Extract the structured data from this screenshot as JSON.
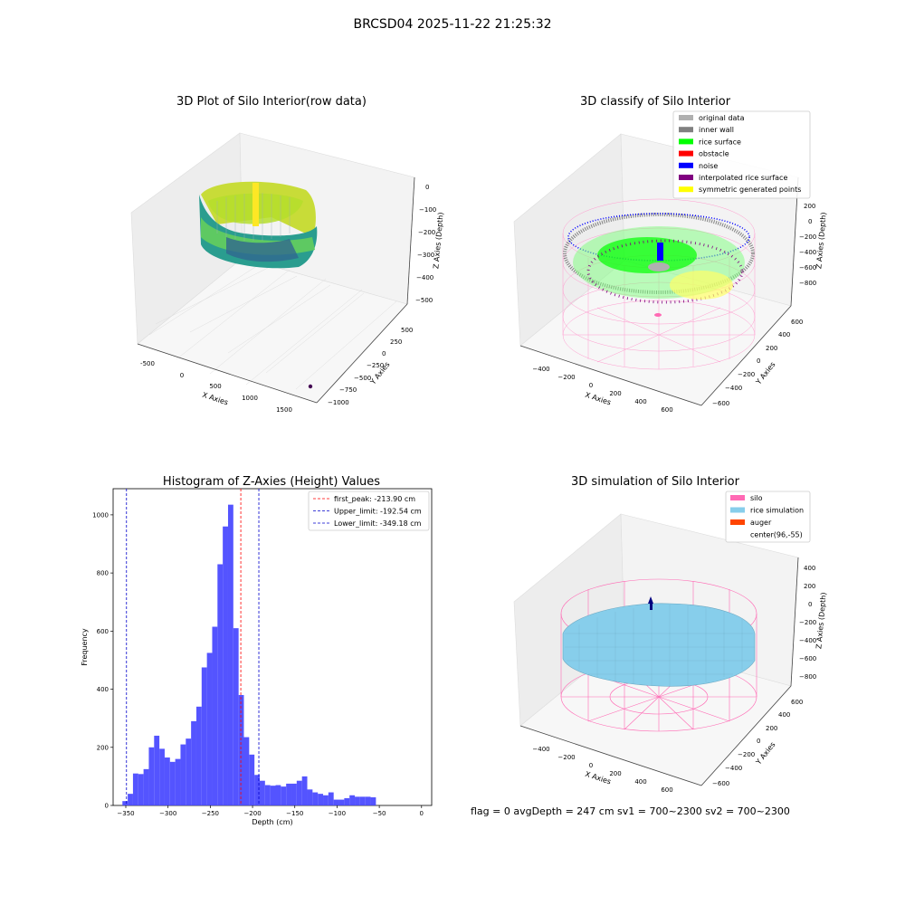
{
  "suptitle": "BRCSD04 2025-11-22 21:25:32",
  "footer": "flag = 0     avgDepth = 247 cm  sv1 = 700~2300  sv2 = 700~2300",
  "colors": {
    "hist_bar": "#4b4bff",
    "first_peak": "#ff0000",
    "limits": "#0000cc",
    "silo": "#ff69b4",
    "rice_sim": "#87ceeb",
    "auger": "#ff4500",
    "surface": "#00ff00",
    "noise": "#0000ff",
    "inner_wall": "#808080",
    "interp": "#800080",
    "sym": "#ffff00",
    "original": "#b0b0b0"
  },
  "chart_data": [
    {
      "type": "scatter",
      "panel": "row_data",
      "title": "3D Plot of Silo Interior(row data)",
      "xlabel": "X Axies",
      "ylabel": "Y Axies",
      "zlabel": "Z Axies (Depth)",
      "x_ticks": [
        "-500",
        "0",
        "500",
        "1000",
        "1500"
      ],
      "y_ticks": [
        "500",
        "250",
        "0",
        "−250",
        "−500",
        "−750",
        "−1000"
      ],
      "z_ticks": [
        "0",
        "−100",
        "−200",
        "−300",
        "−400",
        "−500"
      ]
    },
    {
      "type": "scatter",
      "panel": "classify",
      "title": "3D classify of Silo Interior",
      "xlabel": "X Axies",
      "ylabel": "Y Axies",
      "zlabel": "Z Axies (Depth)",
      "x_ticks": [
        "−400",
        "−200",
        "0",
        "200",
        "400",
        "600"
      ],
      "y_ticks": [
        "600",
        "400",
        "200",
        "0",
        "−200",
        "−400",
        "−600"
      ],
      "z_ticks": [
        "200",
        "0",
        "−200",
        "−400",
        "−600",
        "−800"
      ],
      "legend_position": "top-right",
      "legend": [
        {
          "label": "original data",
          "color": "#b0b0b0"
        },
        {
          "label": "inner wall",
          "color": "#808080"
        },
        {
          "label": "rice surface",
          "color": "#00ff00"
        },
        {
          "label": "obstacle",
          "color": "#ff0000"
        },
        {
          "label": "noise",
          "color": "#0000ff"
        },
        {
          "label": "interpolated rice surface",
          "color": "#800080"
        },
        {
          "label": "symmetric generated points",
          "color": "#ffff00"
        }
      ]
    },
    {
      "type": "bar",
      "panel": "histogram",
      "title": "Histogram of Z-Axies (Height) Values",
      "xlabel": "Depth (cm)",
      "ylabel": "Frequency",
      "xlim": [
        -365,
        12
      ],
      "ylim": [
        0,
        1090
      ],
      "x_ticks": [
        -350,
        -300,
        -250,
        -200,
        -150,
        -100,
        -50,
        0
      ],
      "y_ticks": [
        0,
        200,
        400,
        600,
        800,
        1000
      ],
      "bin_start": -354,
      "bin_width": 6.25,
      "counts": [
        15,
        40,
        110,
        108,
        125,
        200,
        240,
        195,
        165,
        150,
        160,
        210,
        230,
        290,
        340,
        475,
        525,
        615,
        830,
        960,
        1035,
        610,
        380,
        235,
        175,
        105,
        85,
        70,
        68,
        70,
        65,
        75,
        75,
        85,
        100,
        55,
        45,
        40,
        35,
        45,
        20,
        20,
        25,
        35,
        30,
        30,
        30,
        28
      ],
      "vlines": [
        {
          "value": -213.9,
          "label": "first_peak: -213.90 cm",
          "color": "#ff0000"
        },
        {
          "value": -192.54,
          "label": "Upper_limit: -192.54 cm",
          "color": "#0000cc"
        },
        {
          "value": -349.18,
          "label": "Lower_limit: -349.18 cm",
          "color": "#0000cc"
        }
      ],
      "legend_position": "top-right"
    },
    {
      "type": "surface",
      "panel": "simulation",
      "title": "3D simulation of Silo Interior",
      "xlabel": "X Axies",
      "ylabel": "Y Axies",
      "zlabel": "Z Axies (Depth)",
      "x_ticks": [
        "−400",
        "−200",
        "0",
        "200",
        "400",
        "600"
      ],
      "y_ticks": [
        "600",
        "400",
        "200",
        "0",
        "−200",
        "−400",
        "−600"
      ],
      "z_ticks": [
        "400",
        "200",
        "0",
        "−200",
        "−400",
        "−600",
        "−800"
      ],
      "legend_position": "top-right",
      "legend": [
        {
          "label": "silo",
          "color": "#ff69b4"
        },
        {
          "label": "rice simulation",
          "color": "#87ceeb"
        },
        {
          "label": "auger",
          "color": "#ff4500"
        },
        {
          "label": "center(96,-55)",
          "color": ""
        }
      ]
    }
  ]
}
